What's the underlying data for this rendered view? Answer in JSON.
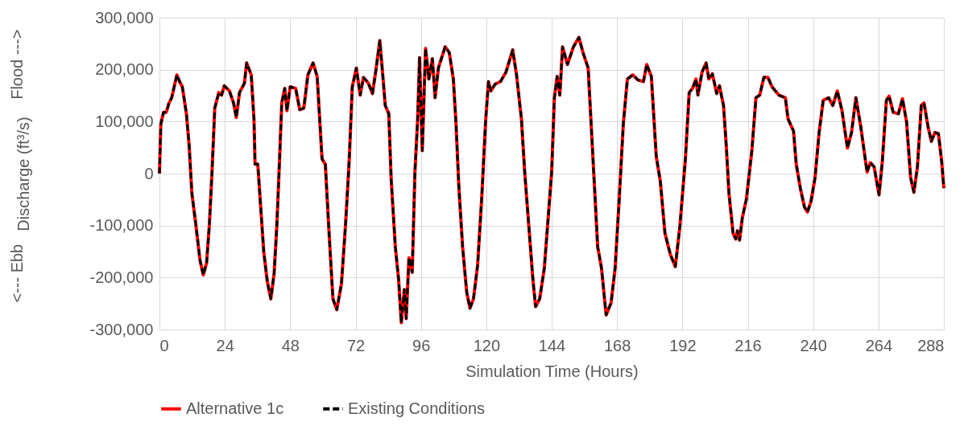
{
  "chart_data": {
    "type": "line",
    "xlabel": "Simulation Time (Hours)",
    "ylabel": "Discharge (ft³/s)",
    "annotations": [
      "Flood --->",
      "<--- Ebb"
    ],
    "x": [
      0,
      0.5,
      1.5,
      2.5,
      3.5,
      4.5,
      6.4,
      7.4,
      8.4,
      9.9,
      10.9,
      11.9,
      13.4,
      14.9,
      16.1,
      17.3,
      18.3,
      19.3,
      20.3,
      21.8,
      22.8,
      23.8,
      25.7,
      27.2,
      28.2,
      29.4,
      31.2,
      32,
      33.7,
      34.7,
      35.1,
      36.1,
      37.1,
      38.3,
      39.6,
      40.9,
      42.1,
      43.1,
      44.1,
      44.9,
      46,
      46.8,
      48,
      50,
      51.5,
      53,
      54.5,
      56.4,
      57.9,
      59.7,
      60.9,
      62.4,
      63.7,
      65.1,
      66.8,
      68.3,
      69.6,
      70.8,
      72.3,
      73.7,
      74.9,
      76.7,
      78.2,
      79.5,
      80.9,
      81.9,
      82.9,
      84.2,
      85.1,
      86.6,
      87.8,
      88.8,
      89.9,
      90.6,
      91.6,
      92.8,
      93.8,
      94.8,
      95.5,
      96.5,
      97.7,
      98.9,
      100.2,
      101.2,
      102.4,
      104.9,
      106.4,
      107.9,
      108.9,
      109.9,
      111.3,
      112.8,
      114,
      115.3,
      116.8,
      118.3,
      119.8,
      120.8,
      121.7,
      123.2,
      125.2,
      127.2,
      129.7,
      131.1,
      132.9,
      134.1,
      135.6,
      137.1,
      138.1,
      139.6,
      141.3,
      142.5,
      144,
      145,
      146,
      147,
      148,
      149.8,
      152,
      154,
      155.5,
      157.4,
      158.4,
      159.7,
      160.9,
      162.3,
      164,
      165.8,
      167.3,
      168.8,
      170.3,
      171.8,
      173.8,
      175.7,
      177.7,
      178.9,
      180.6,
      182.4,
      183.9,
      185.6,
      187.6,
      189.4,
      191.1,
      193.1,
      194.5,
      195.7,
      197,
      197.7,
      199.2,
      200.7,
      201.7,
      203,
      204.6,
      205.6,
      207.1,
      208.1,
      209.1,
      210.6,
      211.6,
      212.2,
      213,
      214,
      215.5,
      217.5,
      219,
      220.4,
      221.9,
      223.4,
      224.9,
      227.4,
      229.8,
      230.8,
      232.8,
      233.8,
      235.3,
      236.8,
      237.9,
      239.2,
      240.7,
      242.2,
      243.7,
      245.7,
      247.2,
      248.9,
      250.6,
      252.6,
      254.1,
      255.7,
      257.5,
      259,
      259.8,
      261,
      262.4,
      264.2,
      265.4,
      266.9,
      267.9,
      269.4,
      271.3,
      272.8,
      274.3,
      275.8,
      277,
      278.3,
      279.7,
      280.7,
      282.2,
      283.4,
      284.7,
      286,
      287.2,
      288
    ],
    "series": [
      {
        "name": "Alternative 1c",
        "color": "#ff0000",
        "line_style": "solid",
        "values": [
          0,
          95000,
          118000,
          118000,
          136000,
          146000,
          190000,
          177000,
          167000,
          115000,
          54000,
          -38000,
          -100000,
          -167000,
          -195000,
          -172000,
          -100000,
          3000,
          126000,
          156000,
          151000,
          169000,
          159000,
          136000,
          108000,
          156000,
          174000,
          213000,
          190000,
          105000,
          18000,
          18000,
          -59000,
          -151000,
          -208000,
          -241000,
          -192000,
          -100000,
          28000,
          136000,
          164000,
          121000,
          167000,
          164000,
          123000,
          126000,
          190000,
          213000,
          187000,
          28000,
          18000,
          -126000,
          -241000,
          -262000,
          -213000,
          -100000,
          18000,
          167000,
          203000,
          151000,
          185000,
          174000,
          154000,
          200000,
          256000,
          195000,
          131000,
          115000,
          -13000,
          -141000,
          -203000,
          -287000,
          -223000,
          -279000,
          -162000,
          -190000,
          3000,
          105000,
          223000,
          44000,
          241000,
          182000,
          221000,
          146000,
          203000,
          244000,
          233000,
          182000,
          95000,
          -23000,
          -141000,
          -228000,
          -259000,
          -241000,
          -177000,
          -49000,
          105000,
          177000,
          159000,
          172000,
          177000,
          195000,
          238000,
          190000,
          105000,
          3000,
          -100000,
          -203000,
          -256000,
          -241000,
          -182000,
          -100000,
          3000,
          146000,
          187000,
          151000,
          244000,
          210000,
          244000,
          262000,
          233000,
          203000,
          105000,
          -23000,
          -141000,
          -182000,
          -272000,
          -249000,
          -182000,
          -49000,
          95000,
          182000,
          190000,
          180000,
          177000,
          210000,
          187000,
          33000,
          -15000,
          -115000,
          -156000,
          -179000,
          -100000,
          28000,
          156000,
          164000,
          182000,
          151000,
          195000,
          213000,
          182000,
          192000,
          154000,
          169000,
          131000,
          54000,
          -38000,
          -115000,
          -126000,
          -110000,
          -128000,
          -85000,
          -49000,
          44000,
          146000,
          151000,
          185000,
          185000,
          167000,
          151000,
          146000,
          105000,
          82000,
          18000,
          -28000,
          -64000,
          -74000,
          -54000,
          -8000,
          79000,
          141000,
          146000,
          131000,
          159000,
          121000,
          49000,
          79000,
          146000,
          90000,
          33000,
          3000,
          21000,
          13000,
          -41000,
          23000,
          141000,
          149000,
          118000,
          115000,
          144000,
          100000,
          -8000,
          -36000,
          13000,
          131000,
          136000,
          90000,
          62000,
          79000,
          77000,
          23000,
          -28000
        ]
      },
      {
        "name": "Existing Conditions",
        "color": "#000000",
        "line_style": "dashed",
        "values": [
          0,
          95000,
          118000,
          118000,
          136000,
          146000,
          190000,
          177000,
          167000,
          115000,
          54000,
          -38000,
          -100000,
          -167000,
          -195000,
          -172000,
          -100000,
          3000,
          126000,
          156000,
          151000,
          169000,
          159000,
          136000,
          108000,
          156000,
          174000,
          213000,
          190000,
          105000,
          18000,
          18000,
          -59000,
          -151000,
          -208000,
          -241000,
          -192000,
          -100000,
          28000,
          136000,
          164000,
          121000,
          167000,
          164000,
          123000,
          126000,
          190000,
          213000,
          187000,
          28000,
          18000,
          -126000,
          -241000,
          -262000,
          -213000,
          -100000,
          18000,
          167000,
          203000,
          151000,
          185000,
          174000,
          154000,
          200000,
          256000,
          195000,
          131000,
          115000,
          -13000,
          -141000,
          -203000,
          -287000,
          -223000,
          -279000,
          -162000,
          -190000,
          3000,
          105000,
          223000,
          44000,
          241000,
          182000,
          221000,
          146000,
          203000,
          244000,
          233000,
          182000,
          95000,
          -23000,
          -141000,
          -228000,
          -259000,
          -241000,
          -177000,
          -49000,
          105000,
          177000,
          159000,
          172000,
          177000,
          195000,
          238000,
          190000,
          105000,
          3000,
          -100000,
          -203000,
          -256000,
          -241000,
          -182000,
          -100000,
          3000,
          146000,
          187000,
          151000,
          244000,
          210000,
          244000,
          262000,
          233000,
          203000,
          105000,
          -23000,
          -141000,
          -182000,
          -272000,
          -249000,
          -182000,
          -49000,
          95000,
          182000,
          190000,
          180000,
          177000,
          210000,
          187000,
          33000,
          -15000,
          -115000,
          -156000,
          -179000,
          -100000,
          28000,
          156000,
          164000,
          182000,
          151000,
          195000,
          213000,
          182000,
          192000,
          154000,
          169000,
          131000,
          54000,
          -38000,
          -115000,
          -126000,
          -110000,
          -128000,
          -85000,
          -49000,
          44000,
          146000,
          151000,
          185000,
          185000,
          167000,
          151000,
          146000,
          105000,
          82000,
          18000,
          -28000,
          -64000,
          -74000,
          -54000,
          -8000,
          79000,
          141000,
          146000,
          131000,
          159000,
          121000,
          49000,
          79000,
          146000,
          90000,
          33000,
          3000,
          21000,
          13000,
          -41000,
          23000,
          141000,
          149000,
          118000,
          115000,
          144000,
          100000,
          -8000,
          -36000,
          13000,
          131000,
          136000,
          90000,
          62000,
          79000,
          77000,
          23000,
          -28000
        ]
      }
    ],
    "xlim": [
      0,
      288
    ],
    "xticks": [
      0,
      24,
      48,
      72,
      96,
      120,
      144,
      168,
      192,
      216,
      240,
      264,
      288
    ],
    "ylim": [
      -300000,
      300000
    ],
    "yticks": [
      {
        "value": -300000,
        "label": "-300,000"
      },
      {
        "value": -200000,
        "label": "-200,000"
      },
      {
        "value": -100000,
        "label": "-100,000"
      },
      {
        "value": 0,
        "label": "0"
      },
      {
        "value": 100000,
        "label": "100,000"
      },
      {
        "value": 200000,
        "label": "200,000"
      },
      {
        "value": 300000,
        "label": "300,000"
      }
    ],
    "grid": true,
    "legend": "bottom",
    "marker": "none"
  }
}
